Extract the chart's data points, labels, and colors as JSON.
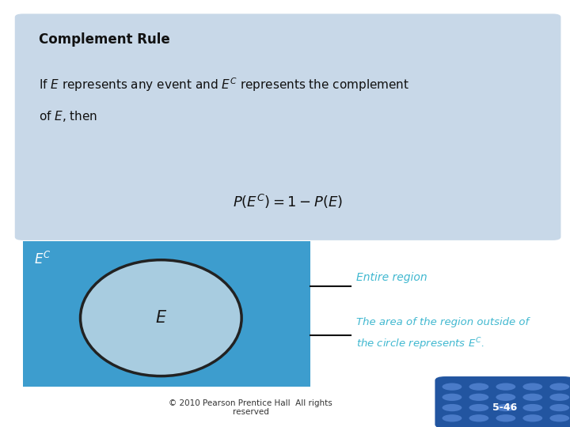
{
  "title": "Complement Rule",
  "top_box_color": "#c8d8e8",
  "bg_color": "#ffffff",
  "diagram_bg": "#3d9dce",
  "ellipse_fill": "#a8cce0",
  "ellipse_edge": "#222222",
  "ellipse_lw": 2.5,
  "ec_label_color": "#ffffff",
  "e_label_color": "#1a1a1a",
  "annotation_color": "#40b8d0",
  "annotation1": "Entire region",
  "annotation2_line1": "The area of the region outside of",
  "annotation2_line2": "the circle represents $E^C$.",
  "footer": "© 2010 Pearson Prentice Hall  All rights\nreserved",
  "slide_num": "5-46",
  "slide_num_bg": "#2255a0",
  "slide_num_dot": "#4a7bc8"
}
